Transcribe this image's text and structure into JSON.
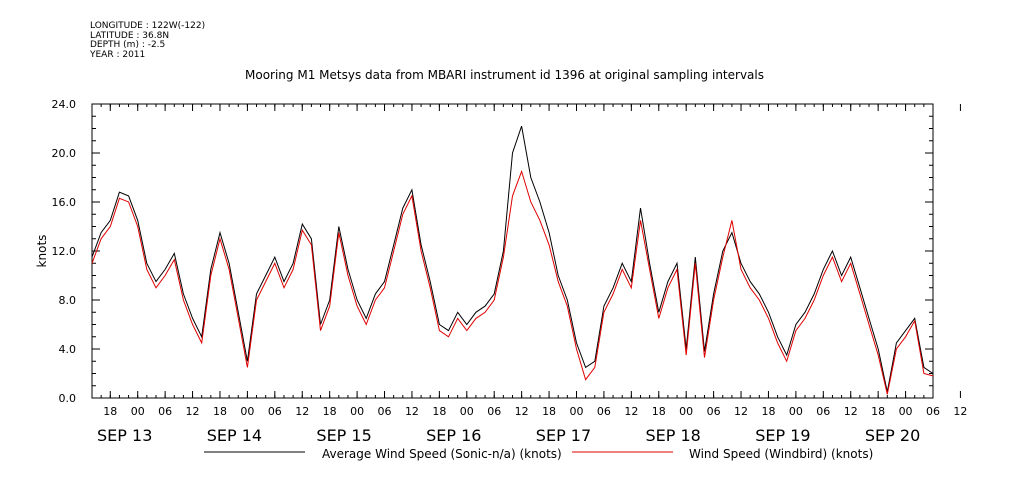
{
  "header": {
    "longitude": "LONGITUDE : 122W(-122)",
    "latitude": "LATITUDE : 36.8N",
    "depth": "DEPTH (m) : -2.5",
    "year": "YEAR : 2011"
  },
  "chart_data": {
    "type": "line",
    "title": "Mooring M1 Metsys data from MBARI instrument id 1396 at original sampling intervals",
    "xlabel": "",
    "ylabel": "knots",
    "ylim": [
      0,
      24
    ],
    "xlim": [
      0,
      184
    ],
    "yticks": [
      "0.0",
      "4.0",
      "8.0",
      "12.0",
      "16.0",
      "20.0",
      "24.0"
    ],
    "hour_ticks": [
      "18",
      "00",
      "06",
      "12",
      "18",
      "00",
      "06",
      "12",
      "18",
      "00",
      "06",
      "12",
      "18",
      "00",
      "06",
      "12",
      "18",
      "00",
      "06",
      "12",
      "18",
      "00",
      "06",
      "12",
      "18",
      "00",
      "06",
      "12",
      "18",
      "00",
      "06",
      "12"
    ],
    "date_labels": [
      "SEP 13",
      "SEP 14",
      "SEP 15",
      "SEP 16",
      "SEP 17",
      "SEP 18",
      "SEP 19",
      "SEP 20"
    ],
    "grid": false,
    "legend_position": "bottom",
    "colors": {
      "sonic": "#000000",
      "windbird": "#e00000"
    },
    "series": [
      {
        "name": "Average Wind Speed (Sonic-n/a) (knots)",
        "x": [
          0,
          2,
          4,
          6,
          8,
          10,
          12,
          14,
          16,
          18,
          20,
          22,
          24,
          26,
          28,
          30,
          32,
          34,
          36,
          38,
          40,
          42,
          44,
          46,
          48,
          50,
          52,
          54,
          56,
          58,
          60,
          62,
          64,
          66,
          68,
          70,
          72,
          74,
          76,
          78,
          80,
          82,
          84,
          86,
          88,
          90,
          92,
          94,
          96,
          98,
          100,
          102,
          104,
          106,
          108,
          110,
          112,
          114,
          116,
          118,
          120,
          122,
          124,
          126,
          128,
          130,
          132,
          134,
          136,
          138,
          140,
          142,
          144,
          146,
          148,
          150,
          152,
          154,
          156,
          158,
          160,
          162,
          164,
          166,
          168,
          170,
          172,
          174,
          176,
          178,
          180,
          182,
          184
        ],
        "y": [
          11.5,
          13.5,
          14.5,
          16.8,
          16.5,
          14.5,
          11.0,
          9.5,
          10.5,
          11.8,
          8.5,
          6.5,
          5.0,
          10.5,
          13.5,
          11.0,
          7.0,
          3.0,
          8.5,
          10.0,
          11.5,
          9.5,
          11.0,
          14.2,
          13.0,
          6.0,
          8.0,
          14.0,
          10.5,
          8.0,
          6.5,
          8.5,
          9.5,
          12.5,
          15.5,
          17.0,
          12.5,
          9.5,
          6.0,
          5.5,
          7.0,
          6.0,
          7.0,
          7.5,
          8.5,
          12.0,
          20.0,
          22.2,
          18.0,
          16.0,
          13.5,
          10.0,
          8.0,
          4.5,
          2.5,
          3.0,
          7.5,
          9.0,
          11.0,
          9.5,
          15.5,
          11.0,
          7.0,
          9.5,
          11.0,
          4.0,
          11.5,
          3.8,
          8.5,
          12.0,
          13.5,
          11.0,
          9.5,
          8.5,
          7.0,
          5.0,
          3.5,
          6.0,
          7.0,
          8.5,
          10.5,
          12.0,
          10.0,
          11.5,
          9.0,
          6.5,
          4.0,
          0.5,
          4.5,
          5.5,
          6.5,
          2.5,
          2.0
        ]
      },
      {
        "name": "Wind Speed (Windbird) (knots)",
        "x": [
          0,
          2,
          4,
          6,
          8,
          10,
          12,
          14,
          16,
          18,
          20,
          22,
          24,
          26,
          28,
          30,
          32,
          34,
          36,
          38,
          40,
          42,
          44,
          46,
          48,
          50,
          52,
          54,
          56,
          58,
          60,
          62,
          64,
          66,
          68,
          70,
          72,
          74,
          76,
          78,
          80,
          82,
          84,
          86,
          88,
          90,
          92,
          94,
          96,
          98,
          100,
          102,
          104,
          106,
          108,
          110,
          112,
          114,
          116,
          118,
          120,
          122,
          124,
          126,
          128,
          130,
          132,
          134,
          136,
          138,
          140,
          142,
          144,
          146,
          148,
          150,
          152,
          154,
          156,
          158,
          160,
          162,
          164,
          166,
          168,
          170,
          172,
          174,
          176,
          178,
          180,
          182,
          184
        ],
        "y": [
          11.0,
          13.0,
          14.0,
          16.3,
          16.0,
          14.0,
          10.5,
          9.0,
          10.0,
          11.3,
          8.0,
          6.0,
          4.5,
          10.0,
          13.0,
          10.5,
          6.5,
          2.5,
          8.0,
          9.5,
          11.0,
          9.0,
          10.5,
          13.7,
          12.5,
          5.5,
          7.5,
          13.5,
          10.0,
          7.5,
          6.0,
          8.0,
          9.0,
          12.0,
          15.0,
          16.5,
          12.0,
          9.0,
          5.5,
          5.0,
          6.5,
          5.5,
          6.5,
          7.0,
          8.0,
          11.5,
          16.5,
          18.5,
          16.0,
          14.5,
          12.5,
          9.5,
          7.5,
          4.0,
          1.5,
          2.5,
          7.0,
          8.5,
          10.5,
          9.0,
          14.5,
          10.5,
          6.5,
          9.0,
          10.5,
          3.5,
          11.0,
          3.3,
          8.0,
          11.5,
          14.5,
          10.5,
          9.0,
          8.0,
          6.5,
          4.5,
          3.0,
          5.5,
          6.5,
          8.0,
          10.0,
          11.5,
          9.5,
          11.0,
          8.5,
          6.0,
          3.5,
          0.3,
          4.0,
          5.0,
          6.3,
          2.0,
          1.8
        ]
      }
    ]
  }
}
